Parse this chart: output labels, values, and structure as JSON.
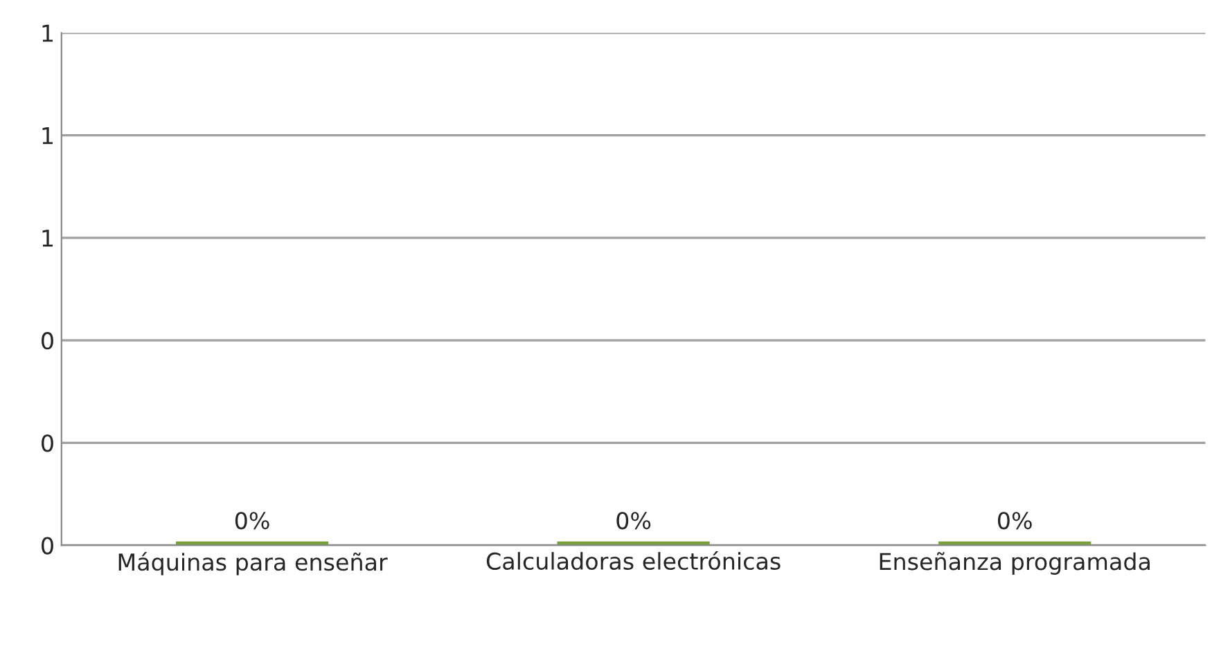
{
  "chart_data": {
    "type": "bar",
    "categories": [
      "Máquinas para enseñar",
      "Calculadoras electrónicas",
      "Enseñanza programada"
    ],
    "values": [
      0,
      0,
      0
    ],
    "value_labels": [
      "0%",
      "0%",
      "0%"
    ],
    "color": "#77a03c",
    "ylim": [
      0,
      1
    ],
    "yticks": [
      {
        "value": 0,
        "label": "0"
      },
      {
        "value": 0.2,
        "label": "0"
      },
      {
        "value": 0.4,
        "label": "0"
      },
      {
        "value": 0.6,
        "label": "1"
      },
      {
        "value": 0.8,
        "label": "1"
      },
      {
        "value": 1.0,
        "label": "1"
      }
    ],
    "grid": "y",
    "legend": false
  }
}
